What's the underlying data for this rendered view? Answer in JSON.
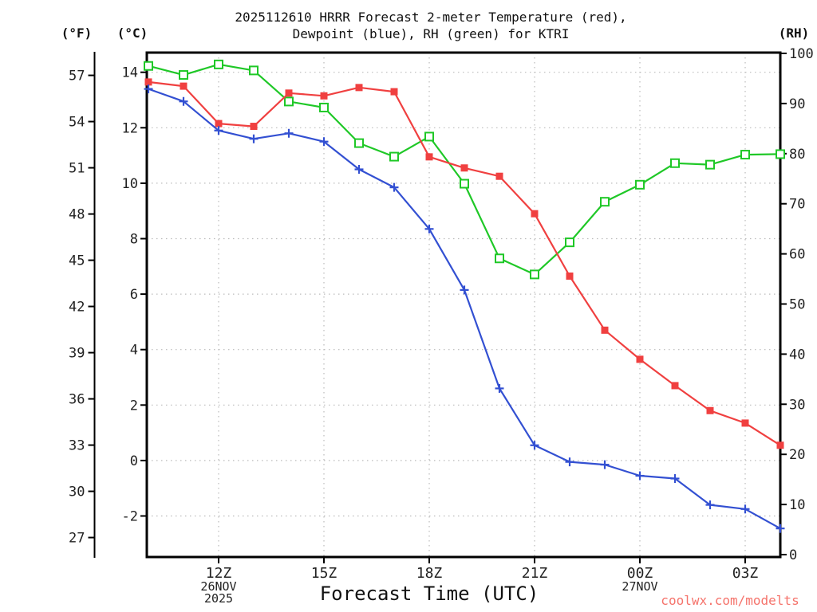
{
  "title": {
    "line1": "2025112610 HRRR Forecast 2-meter Temperature (red),",
    "line2": "Dewpoint (blue), RH (green) for KTRI"
  },
  "axes": {
    "f_header": "(°F)",
    "c_header": "(°C)",
    "rh_header": "(RH)",
    "x_title": "Forecast Time (UTC)"
  },
  "watermark": {
    "text": "coolwx.com/modelts",
    "color": "#f5736b"
  },
  "chart_data": {
    "type": "line",
    "title": "2025112610 HRRR Forecast 2-meter Temperature (red), Dewpoint (blue), RH (green) for KTRI",
    "xlabel": "Forecast Time (UTC)",
    "x": [
      "10Z",
      "11Z",
      "12Z",
      "13Z",
      "14Z",
      "15Z",
      "16Z",
      "17Z",
      "18Z",
      "19Z",
      "20Z",
      "21Z",
      "22Z",
      "23Z",
      "00Z",
      "01Z",
      "02Z",
      "03Z",
      "04Z"
    ],
    "series": [
      {
        "id": "rh",
        "name": "RH",
        "unit": "%",
        "axis": "rh",
        "color": "#1fc827",
        "marker": "open-square",
        "values": [
          97.5,
          95.7,
          97.8,
          96.6,
          90.4,
          89.2,
          82.1,
          79.4,
          83.4,
          74.0,
          59.1,
          55.9,
          62.3,
          70.4,
          73.8,
          78.1,
          77.8,
          79.8,
          79.9
        ]
      },
      {
        "id": "temperature",
        "name": "2-meter Temperature",
        "unit": "°C",
        "axis": "celsius",
        "color": "#f04040",
        "marker": "filled-square",
        "values": [
          13.65,
          13.5,
          12.15,
          12.05,
          13.25,
          13.15,
          13.45,
          13.3,
          10.95,
          10.55,
          10.25,
          8.9,
          6.65,
          4.7,
          3.65,
          2.7,
          1.8,
          1.35,
          0.55
        ]
      },
      {
        "id": "dewpoint",
        "name": "Dewpoint",
        "unit": "°C",
        "axis": "celsius",
        "color": "#3350d2",
        "marker": "plus",
        "values": [
          13.4,
          12.95,
          11.9,
          11.6,
          11.8,
          11.5,
          10.5,
          9.85,
          8.35,
          6.15,
          2.6,
          0.55,
          -0.05,
          -0.15,
          -0.55,
          -0.65,
          -1.6,
          -1.75,
          -2.45
        ]
      }
    ],
    "c_axis": {
      "label": "(°C)",
      "ticks": [
        14,
        12,
        10,
        8,
        6,
        4,
        2,
        0,
        -2
      ],
      "max": 14.71,
      "min": -3.48
    },
    "f_axis": {
      "label": "(°F)",
      "ticks": [
        57,
        54,
        51,
        48,
        45,
        42,
        39,
        36,
        33,
        30,
        27
      ]
    },
    "rh_axis": {
      "label": "(RH)",
      "ticks": [
        100,
        90,
        80,
        70,
        60,
        50,
        40,
        30,
        20,
        10,
        0
      ],
      "max": 100.16,
      "min": -0.48
    },
    "x_ticks": [
      {
        "label": "12Z",
        "index": 2,
        "sublabels": [
          "26NOV",
          "2025"
        ]
      },
      {
        "label": "15Z",
        "index": 5,
        "sublabels": []
      },
      {
        "label": "18Z",
        "index": 8,
        "sublabels": []
      },
      {
        "label": "21Z",
        "index": 11,
        "sublabels": []
      },
      {
        "label": "00Z",
        "index": 14,
        "sublabels": [
          "27NOV"
        ]
      },
      {
        "label": "03Z",
        "index": 17,
        "sublabels": []
      }
    ],
    "grid": {
      "show": true,
      "color": "#bbbbbb",
      "style": "dotted"
    },
    "legend": "none (series identified by color in title)"
  }
}
